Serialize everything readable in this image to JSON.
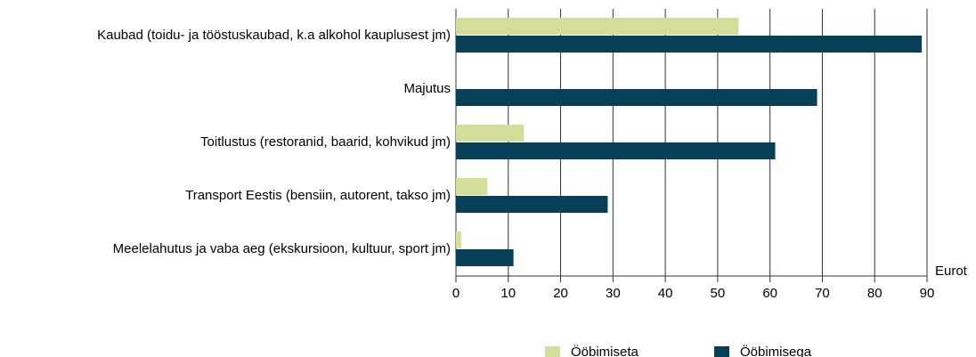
{
  "chart_data": {
    "type": "bar",
    "orientation": "horizontal",
    "categories": [
      "Kaubad (toidu- ja tööstuskaubad, k.a alkohol kauplusest jm)",
      "Majutus",
      "Toitlustus (restoranid, baarid, kohvikud jm)",
      "Transport Eestis (bensiin, autorent, takso jm)",
      "Meelelahutus ja vaba aeg (ekskursioon, kultuur, sport jm)"
    ],
    "series": [
      {
        "name": "Ööbimiseta väliskülastajad",
        "color": "#d3de98",
        "values": [
          54,
          0,
          13,
          6,
          1
        ]
      },
      {
        "name": "Ööbimisega väliskülastajad",
        "color": "#08405a",
        "values": [
          89,
          69,
          61,
          29,
          11
        ]
      }
    ],
    "xlabel": "Eurot",
    "xlim": [
      0,
      90
    ],
    "xticks": [
      0,
      10,
      20,
      30,
      40,
      50,
      60,
      70,
      80,
      90
    ],
    "grid": true
  }
}
